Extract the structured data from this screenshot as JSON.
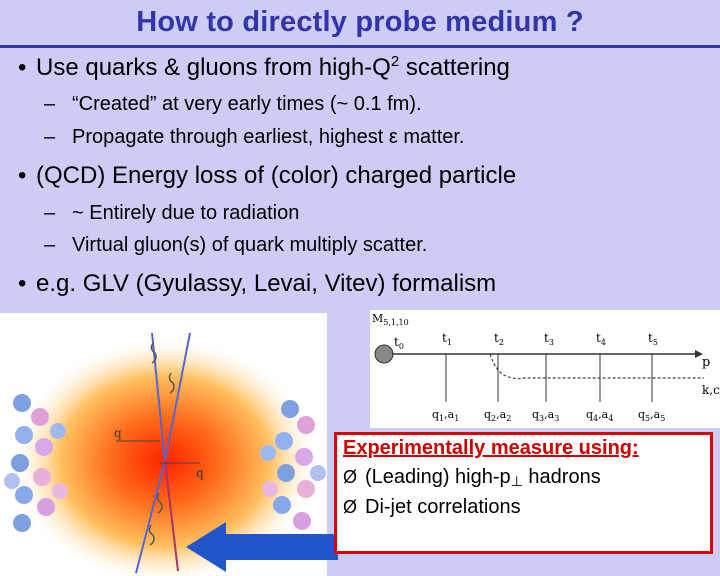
{
  "slide": {
    "title": "How to directly probe medium ?",
    "bullets": [
      {
        "text_before": "Use quarks & gluons from high-Q",
        "sup": "2",
        "text_after": " scattering",
        "subs": [
          "“Created” at very early times (~ 0.1 fm).",
          "Propagate through earliest, highest ε matter."
        ]
      },
      {
        "text": "(QCD) Energy loss of (color) charged particle",
        "subs": [
          "~ Entirely due to radiation",
          "Virtual gluon(s) of quark multiply scatter."
        ]
      },
      {
        "text": "e.g. GLV (Gyulassy, Levai, Vitev) formalism"
      }
    ],
    "bullet_glyph": "•",
    "dash_glyph": "–"
  },
  "collision_figure": {
    "labels": [
      "q",
      "q"
    ],
    "colors": {
      "hot_core": "#ff3300",
      "medium": "#ffcc66",
      "nucleons_blue": "#7fa0e0",
      "nucleons_pink": "#e8a0d0"
    }
  },
  "glv_diagram": {
    "m_label": "M",
    "m_sub": "5,1,10",
    "times": [
      {
        "t": "t",
        "s": "0"
      },
      {
        "t": "t",
        "s": "1"
      },
      {
        "t": "t",
        "s": "2"
      },
      {
        "t": "t",
        "s": "3"
      },
      {
        "t": "t",
        "s": "4"
      },
      {
        "t": "t",
        "s": "5"
      }
    ],
    "p_label": "p",
    "kc_label": "k,c",
    "exchanges": [
      {
        "q": "q",
        "s": "1",
        "a": "a",
        "as": "1"
      },
      {
        "q": "q",
        "s": "2",
        "a": "a",
        "as": "2"
      },
      {
        "q": "q",
        "s": "3",
        "a": "a",
        "as": "3"
      },
      {
        "q": "q",
        "s": "4",
        "a": "a",
        "as": "4"
      },
      {
        "q": "q",
        "s": "5",
        "a": "a",
        "as": "5"
      }
    ]
  },
  "measure": {
    "heading": "Experimentally measure using:",
    "arrow_glyph": "Ø",
    "item1_before": "(Leading) high-p",
    "item1_sub": "⊥",
    "item1_after": " hadrons",
    "item2": "Di-jet correlations"
  }
}
